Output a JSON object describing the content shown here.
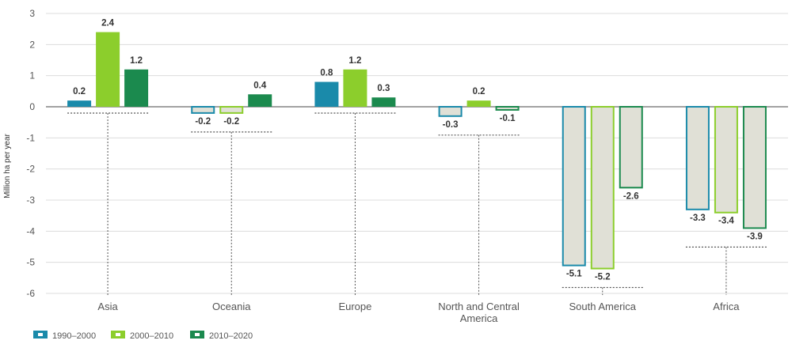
{
  "chart_data": {
    "type": "bar",
    "title": "",
    "ylabel": "Million ha per year",
    "xlabel": "",
    "ylim": [
      -6,
      3
    ],
    "yticks": [
      3,
      2,
      1,
      0,
      -1,
      -2,
      -3,
      -4,
      -5,
      -6
    ],
    "grid": true,
    "legend_position": "bottom-left",
    "categories": [
      "Asia",
      "Oceania",
      "Europe",
      "North and Central America",
      "South America",
      "Africa"
    ],
    "category_lines": [
      [
        "Asia"
      ],
      [
        "Oceania"
      ],
      [
        "Europe"
      ],
      [
        "North and Central",
        "America"
      ],
      [
        "South America"
      ],
      [
        "Africa"
      ]
    ],
    "series": [
      {
        "name": "1990–2000",
        "values": [
          0.2,
          -0.2,
          0.8,
          -0.3,
          -5.1,
          -3.3
        ],
        "labels": [
          "0.2",
          "-0.2",
          "0.8",
          "-0.3",
          "-5.1",
          "-3.3"
        ]
      },
      {
        "name": "2000–2010",
        "values": [
          2.4,
          -0.2,
          1.2,
          0.2,
          -5.2,
          -3.4
        ],
        "labels": [
          "2.4",
          "-0.2",
          "1.2",
          "0.2",
          "-5.2",
          "-3.4"
        ]
      },
      {
        "name": "2010–2020",
        "values": [
          1.2,
          0.4,
          0.3,
          -0.1,
          -2.6,
          -3.9
        ],
        "labels": [
          "1.2",
          "0.4",
          "0.3",
          "-0.1",
          "-2.6",
          "-3.9"
        ]
      }
    ],
    "colors": {
      "series": [
        "#1a8aaa",
        "#8cce2c",
        "#1b8a4e"
      ],
      "negative_fill": "#e0e0d6",
      "axis": "#444444",
      "grid": "#dcdcdc"
    }
  }
}
